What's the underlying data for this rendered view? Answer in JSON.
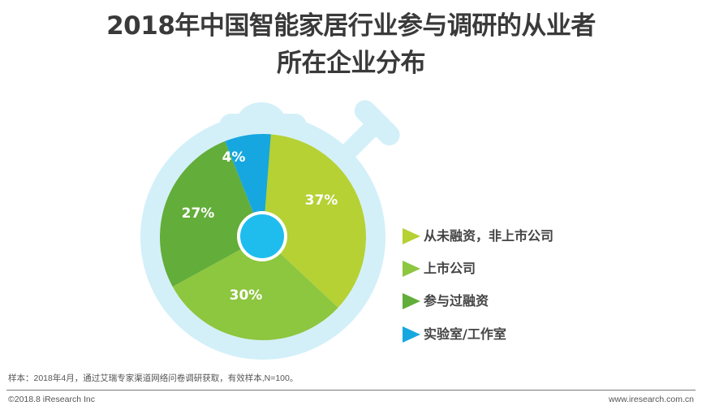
{
  "title": {
    "line1": "2018年中国智能家居行业参与调研的从业者",
    "line2": "所在企业分布"
  },
  "chart_data": {
    "type": "pie",
    "title": "2018年中国智能家居行业参与调研的从业者所在企业分布",
    "categories": [
      "从未融资，非上市公司",
      "上市公司",
      "参与过融资",
      "实验室/工作室"
    ],
    "values": [
      37,
      30,
      27,
      4
    ],
    "unit": "%",
    "labels": [
      "37%",
      "30%",
      "27%",
      "4%"
    ],
    "colors": [
      "#b5d134",
      "#8dc63f",
      "#63ad3a",
      "#16a7e0"
    ],
    "start_angle_deg": 0,
    "direction": "clockwise",
    "legend_position": "right",
    "style": "stopwatch"
  },
  "legend": {
    "items": [
      {
        "label": "从未融资，非上市公司",
        "color": "#b5d134"
      },
      {
        "label": "上市公司",
        "color": "#8dc63f"
      },
      {
        "label": "参与过融资",
        "color": "#63ad3a"
      },
      {
        "label": "实验室/工作室",
        "color": "#16a7e0"
      }
    ]
  },
  "colors": {
    "stopwatch_body": "#d3f0f9",
    "hub": "#1fbdee",
    "hub_ring": "#ffffff",
    "label_text": "#ffffff",
    "title_text": "#3a3a3a"
  },
  "footer": {
    "note": "样本：2018年4月，通过艾瑞专家渠道网络问卷调研获取，有效样本,N=100。",
    "copyright": "©2018.8 iResearch Inc",
    "website": "www.iresearch.com.cn"
  }
}
